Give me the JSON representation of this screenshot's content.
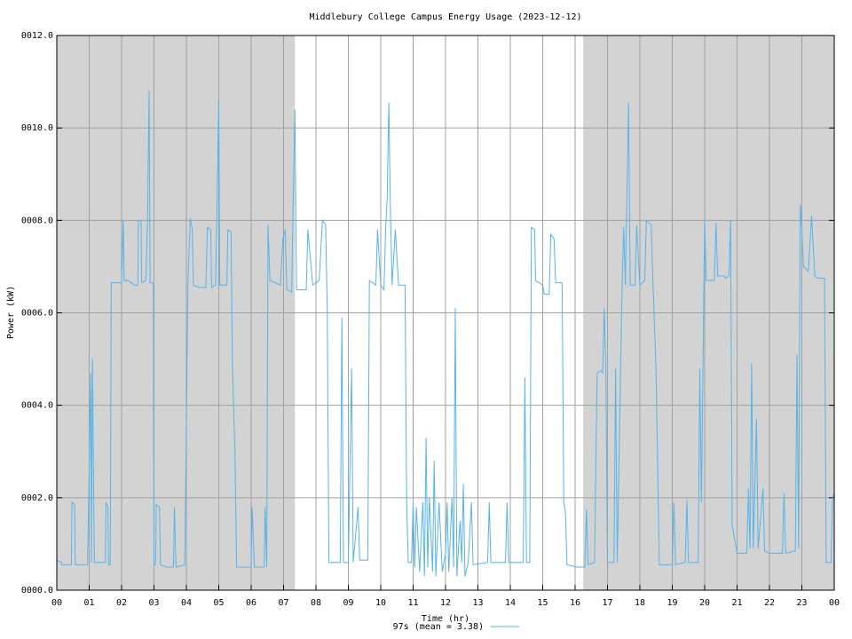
{
  "chart_data": {
    "type": "line",
    "title": "Middlebury College Campus Energy Usage (2023-12-12)",
    "xlabel": "Time (hr)",
    "ylabel": "Power (kW)",
    "xlim": [
      0,
      24
    ],
    "ylim": [
      0,
      12
    ],
    "xticks": [
      {
        "value": 0,
        "label": "00"
      },
      {
        "value": 1,
        "label": "01"
      },
      {
        "value": 2,
        "label": "02"
      },
      {
        "value": 3,
        "label": "03"
      },
      {
        "value": 4,
        "label": "04"
      },
      {
        "value": 5,
        "label": "05"
      },
      {
        "value": 6,
        "label": "06"
      },
      {
        "value": 7,
        "label": "07"
      },
      {
        "value": 8,
        "label": "08"
      },
      {
        "value": 9,
        "label": "09"
      },
      {
        "value": 10,
        "label": "10"
      },
      {
        "value": 11,
        "label": "11"
      },
      {
        "value": 12,
        "label": "12"
      },
      {
        "value": 13,
        "label": "13"
      },
      {
        "value": 14,
        "label": "14"
      },
      {
        "value": 15,
        "label": "15"
      },
      {
        "value": 16,
        "label": "16"
      },
      {
        "value": 17,
        "label": "17"
      },
      {
        "value": 18,
        "label": "18"
      },
      {
        "value": 19,
        "label": "19"
      },
      {
        "value": 20,
        "label": "20"
      },
      {
        "value": 21,
        "label": "21"
      },
      {
        "value": 22,
        "label": "22"
      },
      {
        "value": 23,
        "label": "23"
      },
      {
        "value": 24,
        "label": "00"
      }
    ],
    "yticks": [
      {
        "value": 0,
        "label": "0000.0"
      },
      {
        "value": 2,
        "label": "0002.0"
      },
      {
        "value": 4,
        "label": "0004.0"
      },
      {
        "value": 6,
        "label": "0006.0"
      },
      {
        "value": 8,
        "label": "0008.0"
      },
      {
        "value": 10,
        "label": "0010.0"
      },
      {
        "value": 12,
        "label": "0012.0"
      }
    ],
    "grid": true,
    "legend": "bottom",
    "shaded_regions": [
      [
        0,
        7.35
      ],
      [
        16.25,
        24
      ]
    ],
    "shade_color": "#d3d3d3",
    "series": [
      {
        "name": "97s (mean = 3.38)",
        "color": "#56b4e9",
        "x": [
          0,
          0.15,
          0.16,
          0.45,
          0.47,
          0.55,
          0.57,
          0.95,
          1.05,
          1.07,
          1.1,
          1.13,
          1.16,
          1.5,
          1.52,
          1.58,
          1.6,
          1.65,
          1.68,
          2.0,
          2.02,
          2.05,
          2.08,
          2.2,
          2.4,
          2.5,
          2.52,
          2.6,
          2.62,
          2.75,
          2.8,
          2.85,
          2.88,
          2.98,
          3.0,
          3.05,
          3.07,
          3.17,
          3.2,
          3.4,
          3.6,
          3.63,
          3.68,
          3.95,
          4.05,
          4.12,
          4.18,
          4.22,
          4.4,
          4.6,
          4.65,
          4.75,
          4.78,
          4.9,
          4.95,
          5.0,
          5.03,
          5.25,
          5.28,
          5.38,
          5.42,
          5.5,
          5.55,
          6.0,
          6.03,
          6.1,
          6.4,
          6.43,
          6.48,
          6.52,
          6.58,
          6.9,
          6.98,
          7.05,
          7.1,
          7.25,
          7.3,
          7.35,
          7.4,
          7.7,
          7.75,
          7.9,
          8.1,
          8.2,
          8.3,
          8.35,
          8.4,
          8.75,
          8.8,
          8.85,
          9.0,
          9.1,
          9.15,
          9.3,
          9.35,
          9.6,
          9.65,
          9.85,
          9.9,
          10.0,
          10.1,
          10.15,
          10.2,
          10.25,
          10.3,
          10.35,
          10.45,
          10.55,
          10.75,
          10.8,
          10.85,
          10.95,
          11.0,
          11.05,
          11.1,
          11.2,
          11.3,
          11.35,
          11.4,
          11.45,
          11.5,
          11.6,
          11.65,
          11.7,
          11.8,
          11.9,
          12.0,
          12.05,
          12.1,
          12.2,
          12.25,
          12.3,
          12.35,
          12.45,
          12.5,
          12.55,
          12.6,
          12.7,
          12.8,
          12.85,
          13.3,
          13.35,
          13.4,
          13.85,
          13.9,
          13.95,
          14.4,
          14.45,
          14.5,
          14.6,
          14.65,
          14.75,
          14.78,
          15.0,
          15.05,
          15.2,
          15.25,
          15.35,
          15.4,
          15.6,
          15.65,
          15.7,
          15.75,
          16.05,
          16.3,
          16.35,
          16.4,
          16.6,
          16.68,
          16.8,
          16.85,
          16.9,
          16.95,
          17.0,
          17.2,
          17.25,
          17.3,
          17.45,
          17.5,
          17.55,
          17.65,
          17.7,
          17.85,
          17.9,
          18.0,
          18.15,
          18.2,
          18.35,
          18.4,
          18.5,
          18.6,
          19.0,
          19.05,
          19.1,
          19.4,
          19.45,
          19.5,
          19.8,
          19.85,
          19.9,
          20.0,
          20.05,
          20.3,
          20.35,
          20.4,
          20.6,
          20.65,
          20.75,
          20.8,
          20.85,
          21.0,
          21.3,
          21.35,
          21.4,
          21.45,
          21.5,
          21.6,
          21.65,
          21.8,
          21.85,
          22.0,
          22.4,
          22.45,
          22.5,
          22.8,
          22.85,
          22.9,
          22.95,
          23.0,
          23.05,
          23.2,
          23.3,
          23.4,
          23.5,
          23.7,
          23.75,
          23.9,
          23.95,
          24.0
        ],
        "values": [
          0.65,
          0.6,
          0.55,
          0.55,
          1.9,
          1.85,
          0.55,
          0.55,
          4.7,
          0.6,
          5.0,
          2.8,
          0.6,
          0.6,
          1.9,
          1.8,
          0.55,
          0.55,
          6.65,
          6.65,
          7.2,
          8.0,
          6.7,
          6.7,
          6.6,
          6.6,
          8.0,
          8.0,
          6.65,
          6.7,
          8.0,
          10.8,
          6.65,
          6.65,
          0.55,
          0.55,
          1.85,
          1.8,
          0.55,
          0.5,
          0.5,
          1.8,
          0.5,
          0.55,
          6.7,
          8.05,
          7.8,
          6.6,
          6.55,
          6.55,
          7.85,
          7.8,
          6.55,
          6.6,
          8.5,
          10.6,
          6.6,
          6.6,
          7.8,
          7.75,
          4.9,
          3.0,
          0.5,
          0.5,
          1.8,
          0.5,
          0.5,
          1.8,
          0.5,
          7.9,
          6.7,
          6.6,
          7.6,
          7.8,
          6.5,
          6.45,
          8.5,
          10.4,
          6.5,
          6.5,
          7.8,
          6.6,
          6.7,
          8.0,
          7.9,
          6.0,
          0.6,
          0.6,
          5.9,
          0.6,
          0.6,
          4.8,
          0.6,
          1.8,
          0.65,
          0.65,
          6.7,
          6.6,
          7.8,
          6.6,
          6.5,
          7.8,
          8.5,
          10.55,
          8.2,
          6.6,
          7.8,
          6.6,
          6.6,
          1.9,
          0.6,
          0.6,
          1.9,
          0.5,
          1.8,
          0.4,
          1.9,
          0.3,
          3.3,
          0.5,
          2.0,
          0.4,
          2.8,
          0.3,
          1.9,
          0.4,
          0.8,
          1.9,
          0.4,
          2.0,
          0.5,
          6.1,
          0.3,
          1.5,
          0.6,
          2.3,
          0.3,
          0.6,
          1.9,
          0.55,
          0.6,
          1.9,
          0.6,
          0.6,
          1.9,
          0.6,
          0.6,
          4.6,
          0.6,
          0.6,
          7.85,
          7.8,
          6.7,
          6.6,
          6.4,
          6.4,
          7.7,
          7.6,
          6.65,
          6.65,
          1.9,
          1.7,
          0.55,
          0.5,
          0.5,
          1.75,
          0.55,
          0.6,
          4.7,
          4.75,
          4.7,
          6.1,
          4.7,
          0.6,
          0.6,
          4.8,
          0.6,
          6.55,
          7.85,
          6.6,
          10.55,
          6.6,
          6.6,
          7.9,
          6.6,
          6.7,
          8.0,
          7.9,
          6.7,
          4.75,
          0.55,
          0.55,
          1.9,
          0.55,
          0.6,
          1.95,
          0.6,
          0.6,
          4.8,
          1.9,
          8.0,
          6.7,
          6.7,
          7.95,
          6.8,
          6.8,
          6.75,
          6.8,
          8.0,
          1.4,
          0.8,
          0.8,
          2.2,
          0.9,
          4.9,
          0.9,
          3.7,
          0.9,
          2.2,
          0.85,
          0.8,
          0.8,
          2.1,
          0.8,
          0.85,
          5.1,
          0.9,
          8.35,
          7.8,
          7.0,
          6.9,
          8.1,
          6.8,
          6.75,
          6.75,
          0.6,
          0.6,
          2.0,
          2.1
        ]
      }
    ]
  }
}
